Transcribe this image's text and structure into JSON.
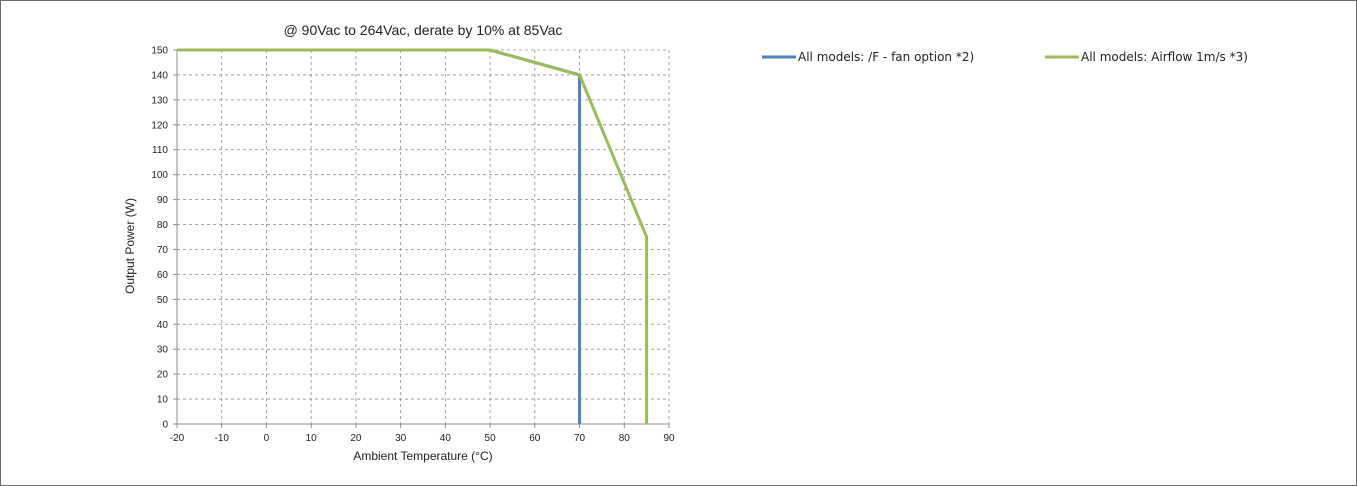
{
  "chart_data": {
    "type": "line",
    "title": "@ 90Vac to 264Vac, derate by 10% at 85Vac",
    "xlabel": "Ambient Temperature  (°C)",
    "ylabel": "Output Power  (W)",
    "xlim": [
      -20,
      90
    ],
    "ylim": [
      0,
      150
    ],
    "xticks": [
      -20,
      -10,
      0,
      10,
      20,
      30,
      40,
      50,
      60,
      70,
      80,
      90
    ],
    "yticks": [
      0,
      10,
      20,
      30,
      40,
      50,
      60,
      70,
      80,
      90,
      100,
      110,
      120,
      130,
      140,
      150
    ],
    "grid": true,
    "legend_position": "top-right",
    "series": [
      {
        "name": "All models: /F - fan option *2)",
        "color": "#4f81bd",
        "x": [
          -20,
          50,
          70,
          70
        ],
        "y": [
          150,
          150,
          140,
          0
        ]
      },
      {
        "name": "All models: Airflow 1m/s *3)",
        "color": "#9bbb59",
        "x": [
          -20,
          50,
          70,
          85,
          85
        ],
        "y": [
          150,
          150,
          140,
          75,
          0
        ]
      }
    ]
  }
}
